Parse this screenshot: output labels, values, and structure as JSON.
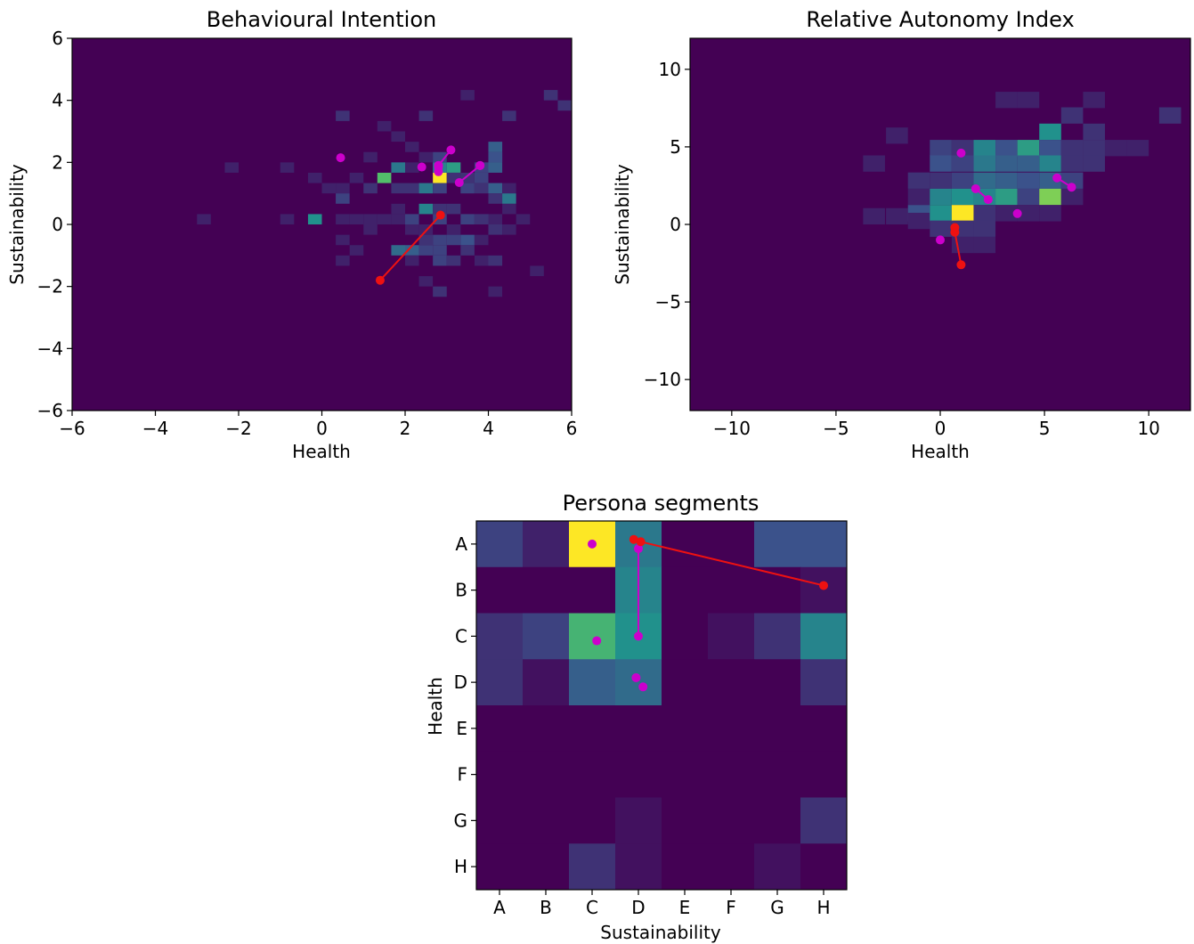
{
  "chart_data": [
    {
      "type": "heatmap",
      "title": "Behavioural Intention",
      "xlabel": "Health",
      "ylabel": "Sustainability",
      "xlim": [
        -6,
        6
      ],
      "ylim": [
        -6,
        6
      ],
      "xticks": [
        "−6",
        "−4",
        "−2",
        "0",
        "2",
        "4",
        "6"
      ],
      "yticks": [
        "−6",
        "−4",
        "−2",
        "0",
        "2",
        "4",
        "6"
      ],
      "colormap": "viridis",
      "background": "#440154",
      "bin_width": 0.333,
      "bins": [
        [
          -3.0,
          0.0,
          0.1
        ],
        [
          -2.333,
          1.667,
          0.1
        ],
        [
          -1.0,
          1.667,
          0.1
        ],
        [
          -1.0,
          0.0,
          0.1
        ],
        [
          -0.333,
          1.333,
          0.1
        ],
        [
          -0.333,
          0.0,
          0.5
        ],
        [
          0.0,
          1.0,
          0.1
        ],
        [
          0.333,
          1.0,
          0.1
        ],
        [
          0.333,
          3.333,
          0.15
        ],
        [
          0.333,
          0.667,
          0.2
        ],
        [
          0.333,
          0.0,
          0.1
        ],
        [
          0.333,
          -0.667,
          0.1
        ],
        [
          0.333,
          -1.333,
          0.1
        ],
        [
          0.667,
          1.333,
          0.1
        ],
        [
          0.667,
          0.0,
          0.1
        ],
        [
          0.667,
          -1.0,
          0.1
        ],
        [
          1.0,
          2.0,
          0.1
        ],
        [
          1.0,
          1.0,
          0.15
        ],
        [
          1.0,
          0.0,
          0.1
        ],
        [
          1.0,
          -0.333,
          0.1
        ],
        [
          1.333,
          3.0,
          0.1
        ],
        [
          1.333,
          1.333,
          0.15
        ],
        [
          1.333,
          0.0,
          0.1
        ],
        [
          1.667,
          2.667,
          0.1
        ],
        [
          1.667,
          1.667,
          0.4
        ],
        [
          1.333,
          1.333,
          0.7
        ],
        [
          1.667,
          1.0,
          0.15
        ],
        [
          1.667,
          0.333,
          0.1
        ],
        [
          1.667,
          0.0,
          0.1
        ],
        [
          1.667,
          -1.0,
          0.35
        ],
        [
          2.0,
          1.667,
          0.1
        ],
        [
          2.0,
          1.0,
          0.15
        ],
        [
          2.0,
          0.0,
          0.2
        ],
        [
          2.0,
          -0.333,
          0.1
        ],
        [
          2.0,
          -1.0,
          0.3
        ],
        [
          2.0,
          -1.333,
          0.1
        ],
        [
          2.0,
          2.333,
          0.1
        ],
        [
          2.333,
          1.0,
          0.4
        ],
        [
          2.333,
          0.333,
          0.45
        ],
        [
          2.333,
          3.333,
          0.15
        ],
        [
          2.333,
          2.0,
          0.1
        ],
        [
          2.333,
          -2.0,
          0.1
        ],
        [
          2.333,
          -1.0,
          0.2
        ],
        [
          2.333,
          -0.333,
          0.1
        ],
        [
          2.333,
          -0.667,
          0.15
        ],
        [
          2.667,
          1.667,
          0.45
        ],
        [
          2.667,
          1.333,
          1.0
        ],
        [
          2.667,
          1.0,
          0.2
        ],
        [
          2.667,
          2.0,
          0.2
        ],
        [
          2.667,
          0.333,
          0.15
        ],
        [
          2.667,
          0.0,
          0.2
        ],
        [
          2.667,
          -0.667,
          0.2
        ],
        [
          2.667,
          -1.0,
          0.2
        ],
        [
          2.667,
          -1.333,
          0.2
        ],
        [
          2.667,
          -2.333,
          0.15
        ],
        [
          3.0,
          1.667,
          0.55
        ],
        [
          3.0,
          1.333,
          0.15
        ],
        [
          3.0,
          0.333,
          0.15
        ],
        [
          3.0,
          -0.333,
          0.1
        ],
        [
          3.0,
          -0.667,
          0.2
        ],
        [
          3.0,
          -1.333,
          0.15
        ],
        [
          3.333,
          1.0,
          0.2
        ],
        [
          3.333,
          1.333,
          0.15
        ],
        [
          3.333,
          0.0,
          0.2
        ],
        [
          3.333,
          -1.0,
          0.15
        ],
        [
          3.333,
          -0.667,
          0.25
        ],
        [
          3.333,
          4.0,
          0.1
        ],
        [
          3.667,
          1.667,
          0.2
        ],
        [
          3.667,
          1.333,
          0.2
        ],
        [
          3.667,
          -0.667,
          0.1
        ],
        [
          3.667,
          -1.333,
          0.1
        ],
        [
          3.667,
          1.0,
          0.15
        ],
        [
          3.667,
          0.0,
          0.15
        ],
        [
          4.0,
          2.333,
          0.3
        ],
        [
          4.0,
          2.0,
          0.3
        ],
        [
          4.0,
          1.667,
          0.3
        ],
        [
          4.0,
          1.0,
          0.3
        ],
        [
          4.0,
          0.667,
          0.15
        ],
        [
          4.0,
          0.0,
          0.1
        ],
        [
          4.0,
          -0.333,
          0.15
        ],
        [
          4.0,
          -1.333,
          0.15
        ],
        [
          4.0,
          -2.333,
          0.1
        ],
        [
          4.0,
          2.0,
          0.25
        ],
        [
          4.333,
          3.333,
          0.15
        ],
        [
          4.333,
          1.0,
          0.1
        ],
        [
          4.333,
          0.333,
          0.1
        ],
        [
          4.333,
          -0.333,
          0.1
        ],
        [
          4.333,
          0.667,
          0.4
        ],
        [
          4.667,
          0.0,
          0.1
        ],
        [
          5.0,
          -1.667,
          0.1
        ],
        [
          5.333,
          4.0,
          0.15
        ],
        [
          5.667,
          3.667,
          0.15
        ]
      ],
      "trajectories": [
        {
          "color": "#cc00cc",
          "points": [
            [
              3.1,
              2.4
            ],
            [
              2.8,
              1.9
            ]
          ]
        },
        {
          "color": "#cc00cc",
          "points": [
            [
              3.8,
              1.9
            ],
            [
              3.3,
              1.35
            ]
          ]
        },
        {
          "color": "#cc00cc",
          "points": [
            [
              2.8,
              1.7
            ],
            [
              2.8,
              1.9
            ]
          ]
        },
        {
          "color": "#ee1111",
          "points": [
            [
              2.85,
              0.3
            ],
            [
              1.4,
              -1.8
            ]
          ]
        }
      ],
      "markers": [
        {
          "color": "#cc00cc",
          "x": 0.45,
          "y": 2.15
        },
        {
          "color": "#cc00cc",
          "x": 2.4,
          "y": 1.85
        },
        {
          "color": "#cc00cc",
          "x": 2.8,
          "y": 1.85
        },
        {
          "color": "#cc00cc",
          "x": 3.8,
          "y": 1.9
        }
      ]
    },
    {
      "type": "heatmap",
      "title": "Relative Autonomy Index",
      "xlabel": "Health",
      "ylabel": "Sustainability",
      "xlim": [
        -12,
        12
      ],
      "ylim": [
        -12,
        12
      ],
      "xticks": [
        "−10",
        "−5",
        "0",
        "5",
        "10"
      ],
      "yticks": [
        "−10",
        "−5",
        "0",
        "5",
        "10"
      ],
      "colormap": "viridis",
      "background": "#440154",
      "bin_width": 1.05,
      "bins": [
        [
          -2.6,
          5.2,
          0.1
        ],
        [
          -3.7,
          3.4,
          0.1
        ],
        [
          -3.7,
          0.0,
          0.1
        ],
        [
          -2.6,
          0.0,
          0.1
        ],
        [
          -1.55,
          2.3,
          0.15
        ],
        [
          -1.55,
          1.25,
          0.1
        ],
        [
          -1.55,
          0.2,
          0.25
        ],
        [
          -1.55,
          -0.3,
          0.1
        ],
        [
          -0.5,
          4.4,
          0.2
        ],
        [
          -0.5,
          3.4,
          0.25
        ],
        [
          -0.5,
          2.3,
          0.15
        ],
        [
          -0.5,
          1.25,
          0.45
        ],
        [
          -0.5,
          0.2,
          0.5
        ],
        [
          -0.5,
          -0.8,
          0.15
        ],
        [
          0.55,
          4.4,
          0.15
        ],
        [
          0.55,
          3.4,
          0.2
        ],
        [
          0.55,
          2.3,
          0.2
        ],
        [
          0.55,
          1.25,
          0.5
        ],
        [
          0.55,
          0.2,
          1.0
        ],
        [
          0.55,
          -0.8,
          0.15
        ],
        [
          0.55,
          -1.85,
          0.1
        ],
        [
          1.6,
          4.4,
          0.45
        ],
        [
          1.6,
          3.4,
          0.4
        ],
        [
          1.6,
          2.3,
          0.35
        ],
        [
          1.6,
          1.25,
          0.45
        ],
        [
          1.6,
          0.2,
          0.15
        ],
        [
          1.6,
          -0.8,
          0.15
        ],
        [
          1.6,
          -1.85,
          0.1
        ],
        [
          2.65,
          7.5,
          0.1
        ],
        [
          2.65,
          4.4,
          0.25
        ],
        [
          2.65,
          3.4,
          0.3
        ],
        [
          2.65,
          2.3,
          0.3
        ],
        [
          2.65,
          1.25,
          0.55
        ],
        [
          2.65,
          0.2,
          0.1
        ],
        [
          3.7,
          7.5,
          0.1
        ],
        [
          3.7,
          4.4,
          0.55
        ],
        [
          3.7,
          3.4,
          0.3
        ],
        [
          3.7,
          2.3,
          0.25
        ],
        [
          3.7,
          1.25,
          0.2
        ],
        [
          3.7,
          0.2,
          0.1
        ],
        [
          4.75,
          5.45,
          0.5
        ],
        [
          4.75,
          4.4,
          0.25
        ],
        [
          4.75,
          3.4,
          0.45
        ],
        [
          4.75,
          2.3,
          0.3
        ],
        [
          4.75,
          1.25,
          0.8
        ],
        [
          4.75,
          0.2,
          0.1
        ],
        [
          5.8,
          6.5,
          0.15
        ],
        [
          5.8,
          4.4,
          0.15
        ],
        [
          5.8,
          3.4,
          0.15
        ],
        [
          5.8,
          2.3,
          0.2
        ],
        [
          5.8,
          1.25,
          0.1
        ],
        [
          6.85,
          7.5,
          0.1
        ],
        [
          6.85,
          5.45,
          0.15
        ],
        [
          6.85,
          4.4,
          0.15
        ],
        [
          6.85,
          3.4,
          0.15
        ],
        [
          7.9,
          4.4,
          0.1
        ],
        [
          8.95,
          4.4,
          0.1
        ],
        [
          10.5,
          6.5,
          0.15
        ]
      ],
      "trajectories": [
        {
          "color": "#cc00cc",
          "points": [
            [
              1.7,
              2.3
            ],
            [
              2.3,
              1.6
            ]
          ]
        },
        {
          "color": "#cc00cc",
          "points": [
            [
              5.6,
              3.0
            ],
            [
              6.3,
              2.4
            ]
          ]
        },
        {
          "color": "#ee1111",
          "points": [
            [
              0.7,
              -0.5
            ],
            [
              1.0,
              -2.6
            ]
          ]
        }
      ],
      "markers": [
        {
          "color": "#cc00cc",
          "x": 1.0,
          "y": 4.6
        },
        {
          "color": "#cc00cc",
          "x": 3.7,
          "y": 0.7
        },
        {
          "color": "#cc00cc",
          "x": 0.0,
          "y": -1.0
        },
        {
          "color": "#ee1111",
          "x": 0.7,
          "y": -0.2
        }
      ]
    },
    {
      "type": "heatmap",
      "title": "Persona segments",
      "xlabel": "Sustainability",
      "ylabel": "Health",
      "categories_x": [
        "A",
        "B",
        "C",
        "D",
        "E",
        "F",
        "G",
        "H"
      ],
      "categories_y": [
        "A",
        "B",
        "C",
        "D",
        "E",
        "F",
        "G",
        "H"
      ],
      "colormap": "viridis",
      "values": [
        [
          0.2,
          0.1,
          1.0,
          0.4,
          0.0,
          0.0,
          0.25,
          0.25
        ],
        [
          0.0,
          0.0,
          0.0,
          0.45,
          0.0,
          0.0,
          0.0,
          0.05
        ],
        [
          0.15,
          0.2,
          0.65,
          0.5,
          0.0,
          0.05,
          0.15,
          0.45
        ],
        [
          0.15,
          0.05,
          0.3,
          0.35,
          0.0,
          0.0,
          0.0,
          0.15
        ],
        [
          0.0,
          0.0,
          0.0,
          0.0,
          0.0,
          0.0,
          0.0,
          0.0
        ],
        [
          0.0,
          0.0,
          0.0,
          0.0,
          0.0,
          0.0,
          0.0,
          0.0
        ],
        [
          0.0,
          0.0,
          0.0,
          0.05,
          0.0,
          0.0,
          0.0,
          0.15
        ],
        [
          0.0,
          0.0,
          0.15,
          0.05,
          0.0,
          0.0,
          0.05,
          0.0
        ]
      ],
      "trajectories": [
        {
          "color": "#cc00cc",
          "points": [
            [
              3.0,
              2.0
            ],
            [
              3.0,
              0.1
            ]
          ]
        },
        {
          "color": "#ee1111",
          "points": [
            [
              7.0,
              0.9
            ],
            [
              3.05,
              -0.05
            ]
          ]
        }
      ],
      "markers": [
        {
          "color": "#cc00cc",
          "x": 2.0,
          "y": 0.0
        },
        {
          "color": "#cc00cc",
          "x": 2.1,
          "y": 2.1
        },
        {
          "color": "#cc00cc",
          "x": 2.95,
          "y": 2.9
        },
        {
          "color": "#cc00cc",
          "x": 3.1,
          "y": 3.1
        },
        {
          "color": "#ee1111",
          "x": 2.9,
          "y": -0.1
        }
      ]
    }
  ]
}
